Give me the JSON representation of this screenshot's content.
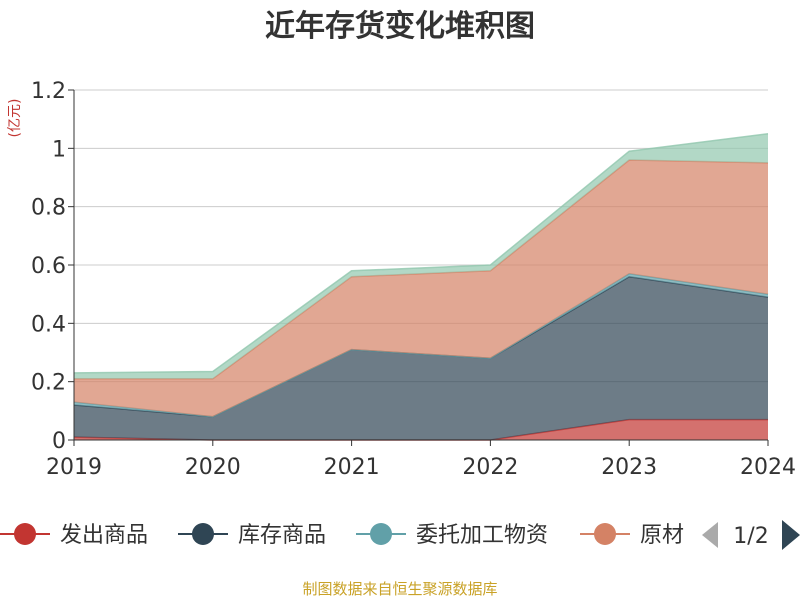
{
  "chart_data": {
    "type": "area",
    "stacked": true,
    "title": "近年存货变化堆积图",
    "unit": "(亿元)",
    "x": [
      "2019",
      "2020",
      "2021",
      "2022",
      "2023",
      "2024"
    ],
    "ylim": [
      0,
      1.2
    ],
    "yticks": [
      "0",
      "0.2",
      "0.4",
      "0.6",
      "0.8",
      "1",
      "1.2"
    ],
    "grid": true,
    "series": [
      {
        "name": "发出商品",
        "color": "#c23531",
        "values": [
          0.01,
          0.0,
          0.0,
          0.0,
          0.07,
          0.07
        ]
      },
      {
        "name": "库存商品",
        "color": "#2f4554",
        "values": [
          0.11,
          0.08,
          0.31,
          0.28,
          0.49,
          0.42
        ]
      },
      {
        "name": "委托加工物资",
        "color": "#61a0a8",
        "values": [
          0.01,
          0.0,
          0.0,
          0.0,
          0.01,
          0.01
        ]
      },
      {
        "name": "原材料",
        "color": "#d48265",
        "values": [
          0.08,
          0.13,
          0.25,
          0.3,
          0.39,
          0.45
        ]
      },
      {
        "name": "",
        "color": "#91c7ae",
        "values": [
          0.02,
          0.025,
          0.02,
          0.02,
          0.03,
          0.1
        ]
      }
    ],
    "legend": {
      "position": "bottom",
      "visible_labels": [
        "发出商品",
        "库存商品",
        "委托加工物资",
        "原材"
      ],
      "page": "1/2"
    }
  },
  "footer": {
    "source": "制图数据来自恒生聚源数据库"
  }
}
